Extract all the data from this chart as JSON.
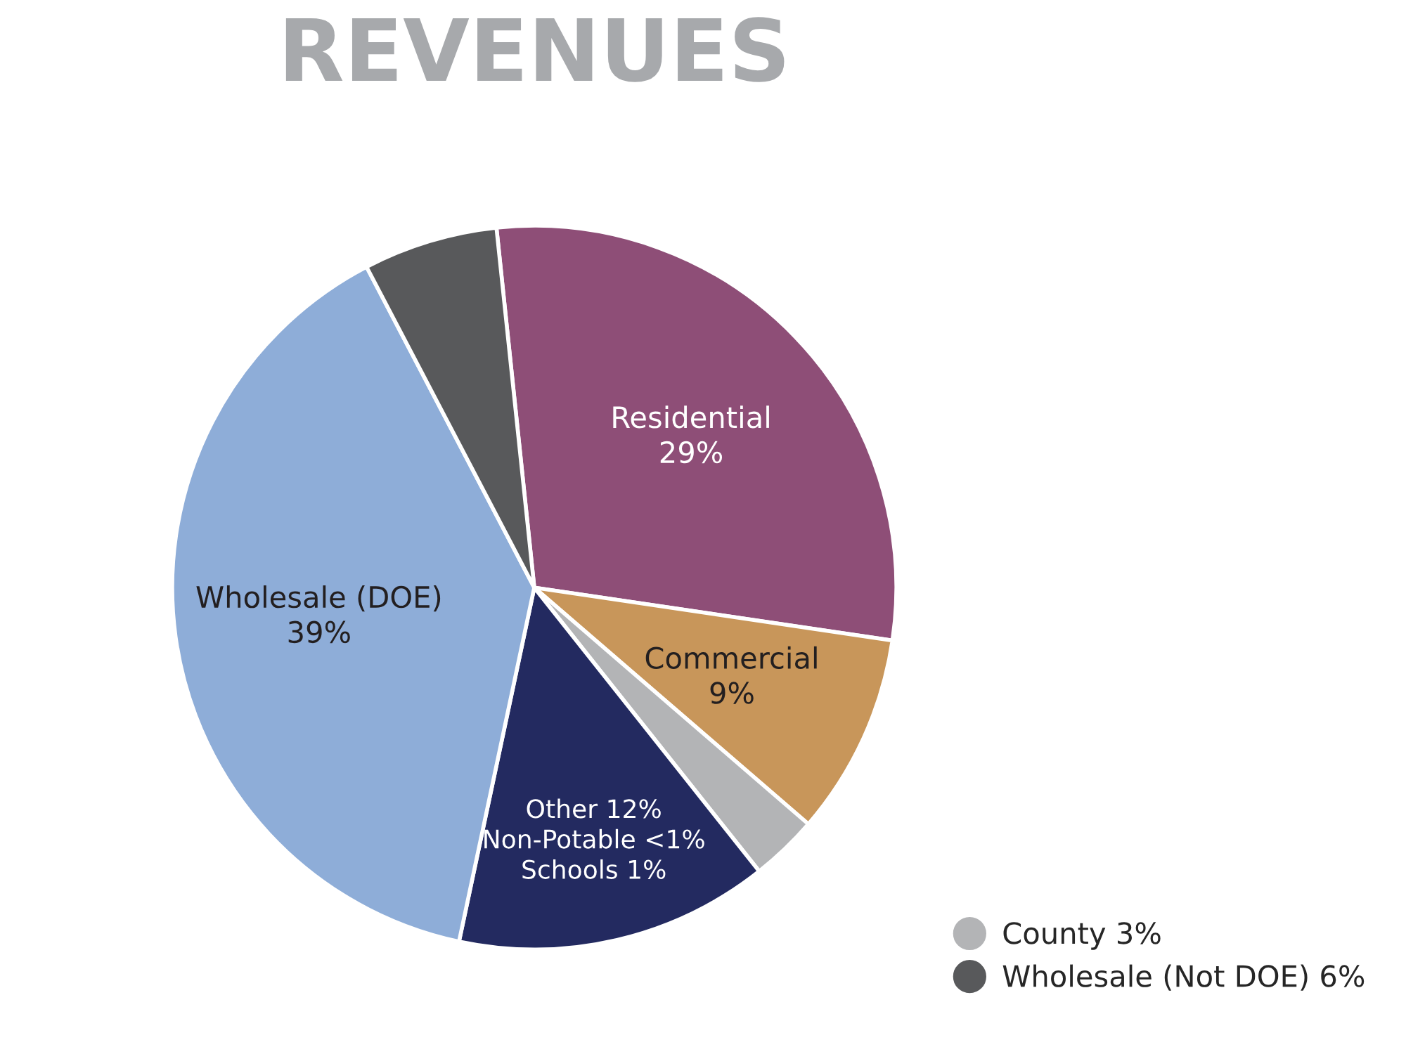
{
  "chart_data": {
    "type": "pie",
    "title": "REVENUES",
    "categories": [
      "Residential",
      "Commercial",
      "County",
      "Other 12%\nNon-Potable <1%\nSchools 1%",
      "Wholesale (DOE)",
      "Wholesale (Not DOE)"
    ],
    "values": [
      29,
      9,
      3,
      14,
      39,
      6
    ],
    "value_labels": [
      "29%",
      "9%",
      "3%",
      null,
      "39%",
      "6%"
    ],
    "colors": [
      "#8e4e77",
      "#c8965a",
      "#b3b4b6",
      "#232a60",
      "#8eadd8",
      "#58595b"
    ],
    "legend": "bottom right"
  }
}
